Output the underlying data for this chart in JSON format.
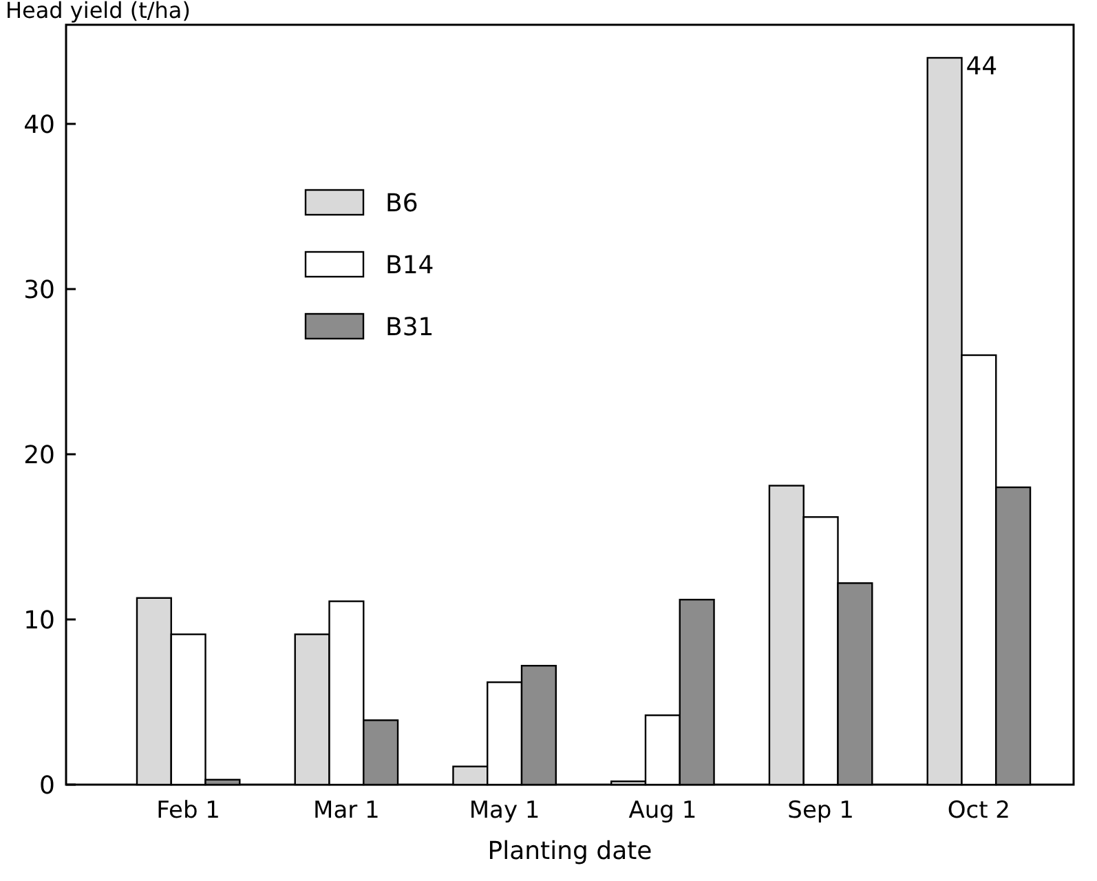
{
  "chart_data": {
    "type": "bar",
    "ylabel": "Head yield (t/ha)",
    "xlabel": "Planting date",
    "categories": [
      "Feb 1",
      "Mar 1",
      "May 1",
      "Aug 1",
      "Sep 1",
      "Oct 2"
    ],
    "series": [
      {
        "name": "B6",
        "color": "#d9d9d9",
        "values": [
          11.3,
          9.1,
          1.1,
          0.2,
          18.1,
          44
        ],
        "value_labels": [
          null,
          null,
          null,
          null,
          null,
          "44"
        ]
      },
      {
        "name": "B14",
        "color": "#ffffff",
        "values": [
          9.1,
          11.1,
          6.2,
          4.2,
          16.2,
          26
        ]
      },
      {
        "name": "B31",
        "color": "#8c8c8c",
        "values": [
          0.3,
          3.9,
          7.2,
          11.2,
          12.2,
          18
        ]
      }
    ],
    "ylim": [
      0,
      46
    ],
    "yticks": [
      0,
      10,
      20,
      30,
      40
    ],
    "grid": false,
    "legend": "top left"
  }
}
